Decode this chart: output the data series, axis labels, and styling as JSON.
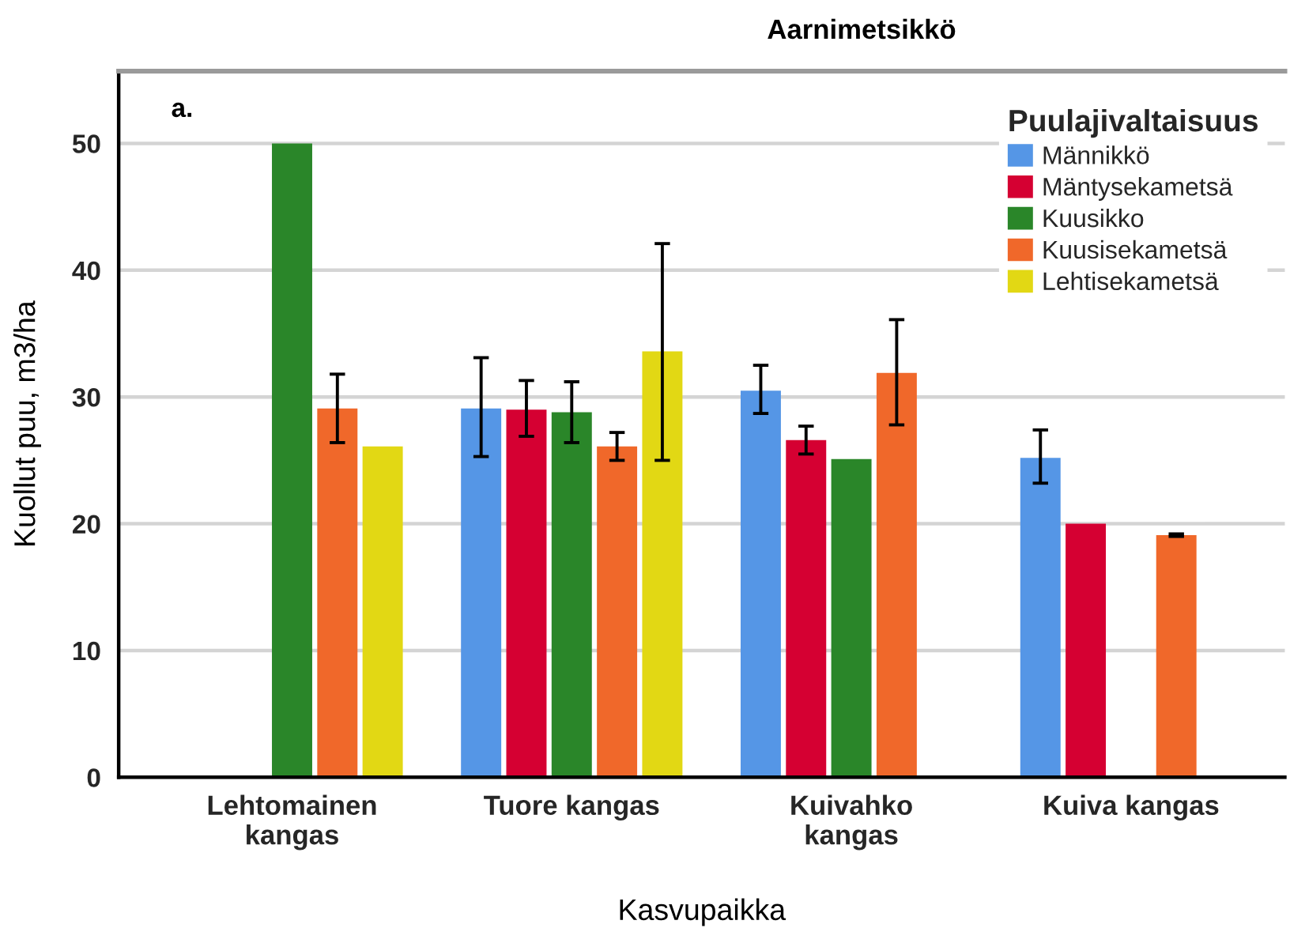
{
  "chart_data": {
    "type": "bar",
    "title": "Aarnimetsikkö",
    "xlabel": "Kasvupaikka",
    "ylabel": "Kuollut puu, m3/ha",
    "legend_title": "Puulajivaltaisuus",
    "annotations": [
      "a."
    ],
    "categories": [
      "Lehtomainen\nkangas",
      "Tuore kangas",
      "Kuivahko\nkangas",
      "Kuiva kangas"
    ],
    "series": [
      {
        "name": "Männikkö",
        "color": "#5596e6",
        "values": [
          null,
          29.1,
          30.5,
          25.2
        ],
        "errors": [
          null,
          [
            25.3,
            33.1
          ],
          [
            28.7,
            32.5
          ],
          [
            23.2,
            27.4
          ]
        ]
      },
      {
        "name": "Mäntysekametsä",
        "color": "#d50032",
        "values": [
          null,
          29.0,
          26.6,
          20.0
        ],
        "errors": [
          null,
          [
            26.9,
            31.3
          ],
          [
            25.5,
            27.7
          ],
          null
        ]
      },
      {
        "name": "Kuusikko",
        "color": "#2a8629",
        "values": [
          50.0,
          28.8,
          25.1,
          null
        ],
        "errors": [
          null,
          [
            26.4,
            31.2
          ],
          null,
          null
        ]
      },
      {
        "name": "Kuusisekametsä",
        "color": "#f0682a",
        "values": [
          29.1,
          26.1,
          31.9,
          19.1
        ],
        "errors": [
          [
            26.4,
            31.8
          ],
          [
            25.0,
            27.2
          ],
          [
            27.8,
            36.1
          ],
          [
            19.0,
            19.2
          ]
        ]
      },
      {
        "name": "Lehtisekametsä",
        "color": "#e2d814",
        "values": [
          26.1,
          33.6,
          null,
          null
        ],
        "errors": [
          null,
          [
            25.0,
            42.1
          ],
          null,
          null
        ]
      }
    ],
    "ylim": [
      0,
      55.7
    ],
    "yticks": [
      0,
      10,
      20,
      30,
      40,
      50
    ],
    "grid": "y",
    "legend": "top right"
  }
}
